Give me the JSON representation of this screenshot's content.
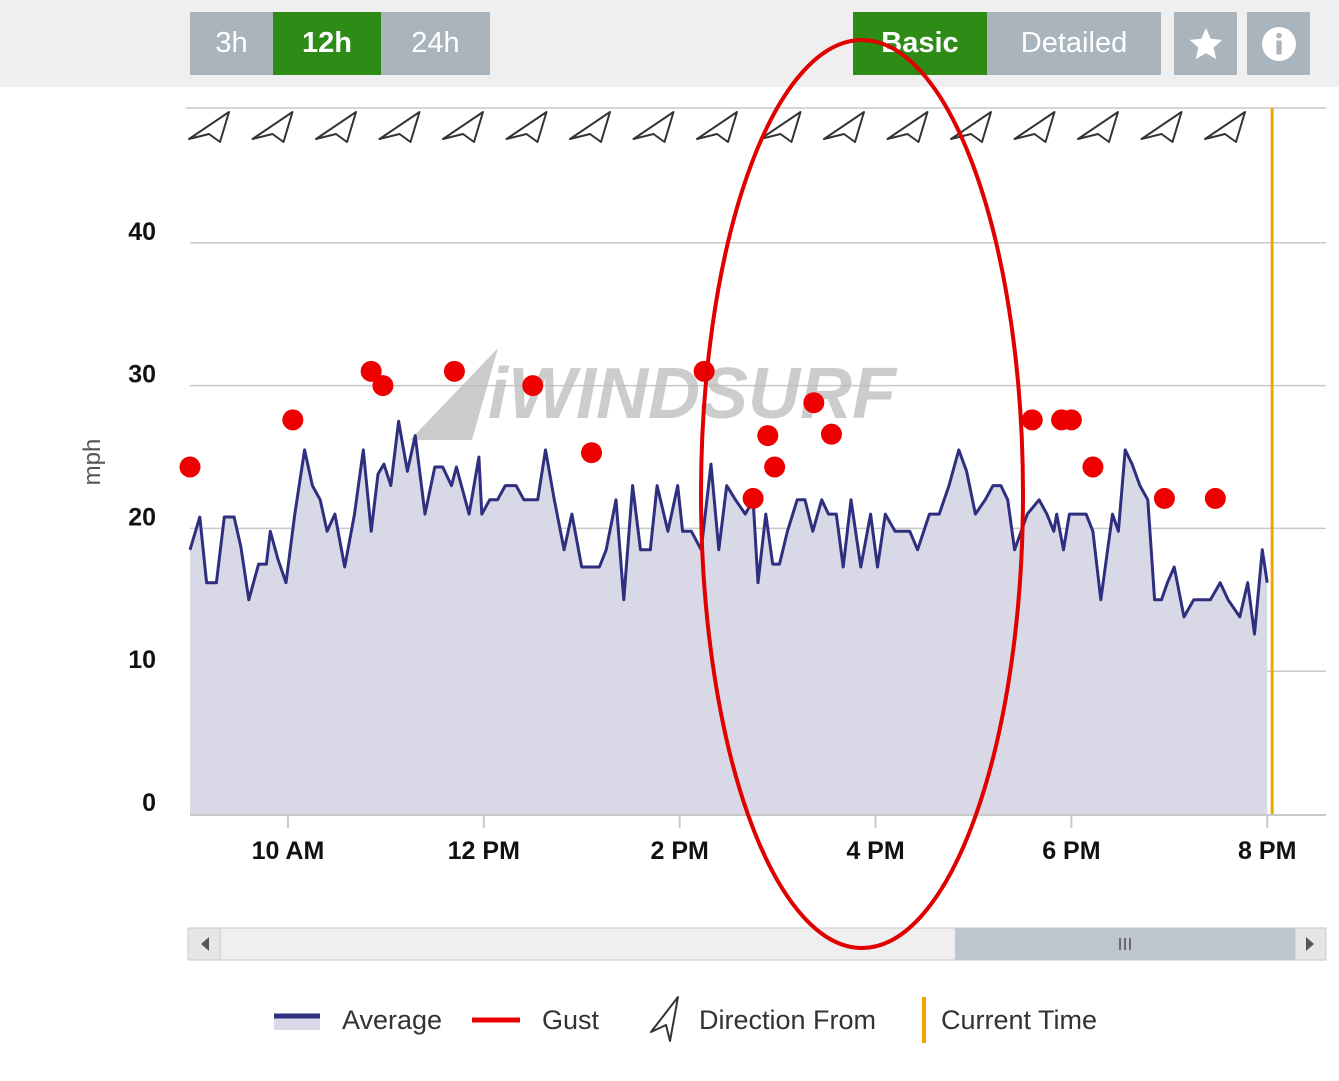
{
  "toolbar": {
    "ranges": [
      {
        "label": "3h",
        "active": false
      },
      {
        "label": "12h",
        "active": true
      },
      {
        "label": "24h",
        "active": false
      }
    ],
    "views": [
      {
        "label": "Basic",
        "active": true
      },
      {
        "label": "Detailed",
        "active": false
      }
    ],
    "icons": [
      "star-icon",
      "info-icon"
    ]
  },
  "watermark": "iWINDSURF",
  "legend": {
    "average": "Average",
    "gust": "Gust",
    "direction": "Direction From",
    "current_time": "Current Time"
  },
  "colors": {
    "average_line": "#2e2f7e",
    "average_fill": "#d8d8e6",
    "gust": "#ee0000",
    "current_time": "#f0a500",
    "active_button": "#2e8b16",
    "inactive_button": "#a9b4bd",
    "annotation_ellipse": "#e00000"
  },
  "chart_data": {
    "type": "line",
    "ylabel": "mph",
    "ylim": [
      0,
      50
    ],
    "yticks": [
      0,
      10,
      20,
      30,
      40
    ],
    "xlim": [
      9.0,
      20.6
    ],
    "xticks": [
      {
        "value": 10,
        "label": "10 AM"
      },
      {
        "value": 12,
        "label": "12 PM"
      },
      {
        "value": 14,
        "label": "2 PM"
      },
      {
        "value": 16,
        "label": "4 PM"
      },
      {
        "value": 18,
        "label": "6 PM"
      },
      {
        "value": 20,
        "label": "8 PM"
      }
    ],
    "current_time": 20.05,
    "grid": true,
    "legend_position": "bottom",
    "series": [
      {
        "name": "Average",
        "style": "area",
        "points": [
          [
            9.0,
            18.5
          ],
          [
            9.1,
            20.8
          ],
          [
            9.17,
            16.2
          ],
          [
            9.27,
            16.2
          ],
          [
            9.35,
            20.8
          ],
          [
            9.45,
            20.8
          ],
          [
            9.52,
            18.7
          ],
          [
            9.6,
            15.0
          ],
          [
            9.7,
            17.5
          ],
          [
            9.78,
            17.5
          ],
          [
            9.82,
            19.8
          ],
          [
            9.9,
            17.8
          ],
          [
            9.98,
            16.2
          ],
          [
            10.07,
            21.0
          ],
          [
            10.17,
            25.5
          ],
          [
            10.25,
            23.0
          ],
          [
            10.33,
            22.0
          ],
          [
            10.4,
            19.8
          ],
          [
            10.48,
            21.0
          ],
          [
            10.58,
            17.3
          ],
          [
            10.68,
            21.0
          ],
          [
            10.77,
            25.5
          ],
          [
            10.85,
            19.8
          ],
          [
            10.92,
            23.8
          ],
          [
            10.98,
            24.5
          ],
          [
            11.05,
            23.0
          ],
          [
            11.13,
            27.5
          ],
          [
            11.22,
            24.0
          ],
          [
            11.3,
            26.5
          ],
          [
            11.4,
            21.0
          ],
          [
            11.5,
            24.3
          ],
          [
            11.58,
            24.3
          ],
          [
            11.67,
            23.0
          ],
          [
            11.72,
            24.3
          ],
          [
            11.85,
            21.0
          ],
          [
            11.95,
            25.0
          ],
          [
            11.98,
            21.0
          ],
          [
            12.06,
            22.0
          ],
          [
            12.14,
            22.0
          ],
          [
            12.22,
            23.0
          ],
          [
            12.33,
            23.0
          ],
          [
            12.41,
            22.0
          ],
          [
            12.55,
            22.0
          ],
          [
            12.63,
            25.5
          ],
          [
            12.72,
            22.0
          ],
          [
            12.82,
            18.5
          ],
          [
            12.9,
            21.0
          ],
          [
            13.0,
            17.3
          ],
          [
            13.08,
            17.3
          ],
          [
            13.18,
            17.3
          ],
          [
            13.25,
            18.5
          ],
          [
            13.35,
            22.0
          ],
          [
            13.43,
            15.0
          ],
          [
            13.52,
            23.0
          ],
          [
            13.6,
            18.5
          ],
          [
            13.7,
            18.5
          ],
          [
            13.77,
            23.0
          ],
          [
            13.88,
            19.8
          ],
          [
            13.98,
            23.0
          ],
          [
            14.03,
            19.8
          ],
          [
            14.12,
            19.8
          ],
          [
            14.22,
            18.5
          ],
          [
            14.32,
            24.5
          ],
          [
            14.4,
            18.5
          ],
          [
            14.48,
            23.0
          ],
          [
            14.57,
            22.0
          ],
          [
            14.67,
            21.0
          ],
          [
            14.75,
            22.0
          ],
          [
            14.8,
            16.2
          ],
          [
            14.88,
            21.0
          ],
          [
            14.95,
            17.5
          ],
          [
            15.02,
            17.5
          ],
          [
            15.1,
            19.8
          ],
          [
            15.2,
            22.0
          ],
          [
            15.28,
            22.0
          ],
          [
            15.36,
            19.8
          ],
          [
            15.45,
            22.0
          ],
          [
            15.52,
            21.0
          ],
          [
            15.6,
            21.0
          ],
          [
            15.67,
            17.3
          ],
          [
            15.75,
            22.0
          ],
          [
            15.85,
            17.3
          ],
          [
            15.95,
            21.0
          ],
          [
            16.02,
            17.3
          ],
          [
            16.1,
            21.0
          ],
          [
            16.2,
            19.8
          ],
          [
            16.35,
            19.8
          ],
          [
            16.43,
            18.5
          ],
          [
            16.55,
            21.0
          ],
          [
            16.65,
            21.0
          ],
          [
            16.75,
            23.0
          ],
          [
            16.85,
            25.5
          ],
          [
            16.93,
            24.0
          ],
          [
            17.02,
            21.0
          ],
          [
            17.12,
            22.0
          ],
          [
            17.2,
            23.0
          ],
          [
            17.28,
            23.0
          ],
          [
            17.35,
            22.0
          ],
          [
            17.42,
            18.5
          ],
          [
            17.55,
            21.0
          ],
          [
            17.67,
            22.0
          ],
          [
            17.75,
            21.0
          ],
          [
            17.82,
            19.8
          ],
          [
            17.85,
            21.0
          ],
          [
            17.92,
            18.5
          ],
          [
            17.98,
            21.0
          ],
          [
            18.07,
            21.0
          ],
          [
            18.15,
            21.0
          ],
          [
            18.22,
            19.8
          ],
          [
            18.3,
            15.0
          ],
          [
            18.42,
            21.0
          ],
          [
            18.48,
            19.8
          ],
          [
            18.55,
            25.5
          ],
          [
            18.62,
            24.5
          ],
          [
            18.7,
            23.0
          ],
          [
            18.78,
            22.0
          ],
          [
            18.85,
            15.0
          ],
          [
            18.92,
            15.0
          ],
          [
            18.98,
            16.2
          ],
          [
            19.05,
            17.3
          ],
          [
            19.15,
            13.8
          ],
          [
            19.25,
            15.0
          ],
          [
            19.35,
            15.0
          ],
          [
            19.42,
            15.0
          ],
          [
            19.52,
            16.2
          ],
          [
            19.6,
            15.0
          ],
          [
            19.72,
            13.8
          ],
          [
            19.8,
            16.2
          ],
          [
            19.87,
            12.6
          ],
          [
            19.95,
            18.5
          ],
          [
            20.0,
            16.2
          ]
        ]
      },
      {
        "name": "Gust",
        "style": "points",
        "points": [
          [
            9.0,
            24.3
          ],
          [
            10.05,
            27.6
          ],
          [
            10.85,
            31.0
          ],
          [
            10.97,
            30.0
          ],
          [
            11.7,
            31.0
          ],
          [
            12.5,
            30.0
          ],
          [
            13.1,
            25.3
          ],
          [
            14.25,
            31.0
          ],
          [
            14.75,
            22.1
          ],
          [
            14.9,
            26.5
          ],
          [
            14.97,
            24.3
          ],
          [
            15.37,
            28.8
          ],
          [
            15.55,
            26.6
          ],
          [
            17.6,
            27.6
          ],
          [
            17.9,
            27.6
          ],
          [
            18.0,
            27.6
          ],
          [
            18.22,
            24.3
          ],
          [
            18.95,
            22.1
          ],
          [
            19.47,
            22.1
          ]
        ]
      }
    ],
    "direction_from": {
      "count": 17
    }
  }
}
